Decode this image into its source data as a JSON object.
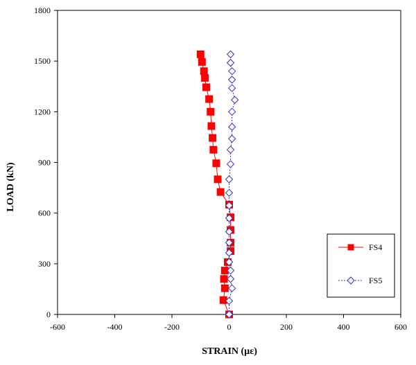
{
  "chart_data": {
    "type": "scatter",
    "title": "",
    "xlabel": "STRAIN (µε)",
    "ylabel": "LOAD (kN)",
    "xlim": [
      -600,
      600
    ],
    "ylim": [
      0,
      1800
    ],
    "xticks": [
      -600,
      -400,
      -200,
      0,
      200,
      400,
      600
    ],
    "yticks": [
      0,
      300,
      600,
      900,
      1200,
      1500,
      1800
    ],
    "xtick_labels": [
      "-600",
      "-400",
      "-200",
      "0",
      "200",
      "400",
      "600"
    ],
    "ytick_labels": [
      "0",
      "300",
      "600",
      "900",
      "1200",
      "1500",
      "1800"
    ],
    "grid": false,
    "legend_position": "right",
    "series": [
      {
        "name": "FS4",
        "color": "#ff0000",
        "marker": "square-filled",
        "line": "solid",
        "points": [
          {
            "x": 0,
            "y": 0
          },
          {
            "x": -20,
            "y": 85
          },
          {
            "x": -15,
            "y": 155
          },
          {
            "x": -18,
            "y": 210
          },
          {
            "x": -15,
            "y": 260
          },
          {
            "x": -5,
            "y": 310
          },
          {
            "x": 5,
            "y": 375
          },
          {
            "x": 5,
            "y": 425
          },
          {
            "x": 5,
            "y": 500
          },
          {
            "x": 5,
            "y": 575
          },
          {
            "x": 0,
            "y": 650
          },
          {
            "x": -30,
            "y": 725
          },
          {
            "x": -40,
            "y": 800
          },
          {
            "x": -45,
            "y": 895
          },
          {
            "x": -55,
            "y": 975
          },
          {
            "x": -58,
            "y": 1045
          },
          {
            "x": -62,
            "y": 1115
          },
          {
            "x": -65,
            "y": 1200
          },
          {
            "x": -70,
            "y": 1275
          },
          {
            "x": -80,
            "y": 1345
          },
          {
            "x": -85,
            "y": 1400
          },
          {
            "x": -88,
            "y": 1440
          },
          {
            "x": -95,
            "y": 1495
          },
          {
            "x": -100,
            "y": 1540
          }
        ]
      },
      {
        "name": "FS5",
        "color": "#3333cc",
        "marker": "diamond-open",
        "line": "dashed",
        "points": [
          {
            "x": 0,
            "y": 0
          },
          {
            "x": 0,
            "y": 80
          },
          {
            "x": 10,
            "y": 155
          },
          {
            "x": 5,
            "y": 210
          },
          {
            "x": 5,
            "y": 260
          },
          {
            "x": 0,
            "y": 310
          },
          {
            "x": 0,
            "y": 365
          },
          {
            "x": 0,
            "y": 425
          },
          {
            "x": 0,
            "y": 490
          },
          {
            "x": 0,
            "y": 570
          },
          {
            "x": 0,
            "y": 645
          },
          {
            "x": 0,
            "y": 720
          },
          {
            "x": 0,
            "y": 800
          },
          {
            "x": 5,
            "y": 890
          },
          {
            "x": 5,
            "y": 975
          },
          {
            "x": 10,
            "y": 1040
          },
          {
            "x": 10,
            "y": 1110
          },
          {
            "x": 10,
            "y": 1200
          },
          {
            "x": 20,
            "y": 1270
          },
          {
            "x": 10,
            "y": 1340
          },
          {
            "x": 10,
            "y": 1390
          },
          {
            "x": 10,
            "y": 1440
          },
          {
            "x": 5,
            "y": 1490
          },
          {
            "x": 5,
            "y": 1540
          }
        ]
      }
    ]
  }
}
